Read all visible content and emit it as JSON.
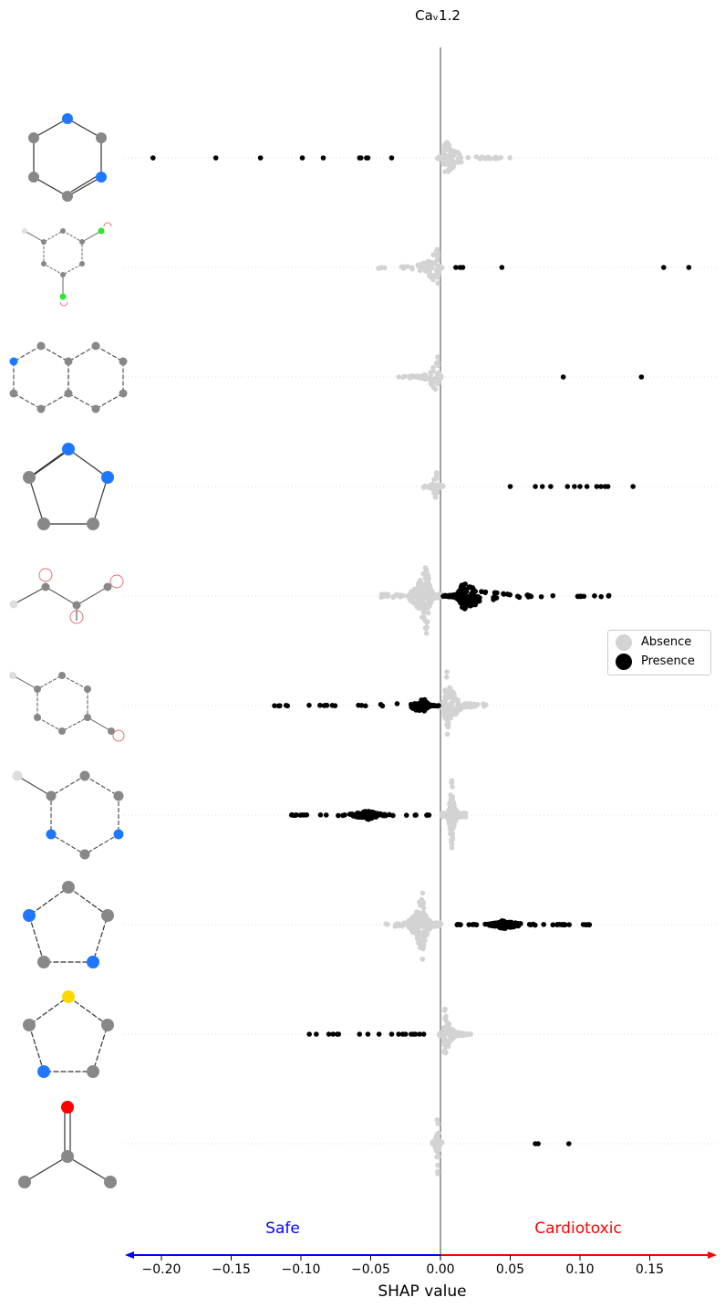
{
  "chart_data": {
    "type": "scatter",
    "title": "Caᵥ1.2",
    "xlabel": "SHAP value",
    "xlim": [
      -0.225,
      0.19
    ],
    "xticks": [
      -0.2,
      -0.15,
      -0.1,
      -0.05,
      0.0,
      0.05,
      0.1,
      0.15
    ],
    "xtick_labels": [
      "−0.20",
      "−0.15",
      "−0.10",
      "−0.05",
      "0.00",
      "0.05",
      "0.10",
      "0.15"
    ],
    "region_labels": {
      "left": "Safe",
      "right": "Cardiotoxic",
      "left_color": "#0000ff",
      "right_color": "#ff0000"
    },
    "legend": {
      "position": "center-right",
      "entries": [
        {
          "label": "Absence",
          "color": "#d3d3d3"
        },
        {
          "label": "Presence",
          "color": "#000000"
        }
      ]
    },
    "grid": false,
    "colors": {
      "absence": "#d3d3d3",
      "presence": "#000000",
      "zero_line": "#808080"
    },
    "rows": [
      {
        "feature": "pyrimidine",
        "absence": {
          "center": 0.003,
          "min": -0.002,
          "max": 0.05,
          "height": 45,
          "n": 110
        },
        "presence": {
          "values": [
            -0.206,
            -0.161,
            -0.129,
            -0.099,
            -0.084,
            -0.058,
            -0.057,
            -0.053,
            -0.052,
            -0.035
          ]
        }
      },
      {
        "feature": "halobenzene-substituted",
        "absence": {
          "center": -0.002,
          "min": -0.045,
          "max": 0.001,
          "height": 45,
          "n": 80
        },
        "presence": {
          "values": [
            0.011,
            0.014,
            0.016,
            0.044,
            0.16,
            0.178
          ]
        }
      },
      {
        "feature": "naphthalene-like",
        "absence": {
          "center": -0.002,
          "min": -0.031,
          "max": 0.001,
          "height": 45,
          "n": 70
        },
        "presence": {
          "values": [
            0.088,
            0.144
          ]
        }
      },
      {
        "feature": "pyrazole",
        "absence": {
          "center": -0.003,
          "min": -0.012,
          "max": 0.002,
          "height": 45,
          "n": 70
        },
        "presence": {
          "values": [
            0.05,
            0.068,
            0.073,
            0.079,
            0.091,
            0.096,
            0.1,
            0.105,
            0.112,
            0.115,
            0.118,
            0.12,
            0.138
          ]
        }
      },
      {
        "feature": "branched-alkyl",
        "absence": {
          "center": -0.01,
          "min": -0.043,
          "max": 0.001,
          "height": 85,
          "n": 220
        },
        "presence": {
          "center": 0.016,
          "min": 0.001,
          "max": 0.121,
          "height": 32,
          "n": 200
        }
      },
      {
        "feature": "substituted-benzene",
        "absence": {
          "center": 0.004,
          "min": -0.001,
          "max": 0.033,
          "height": 85,
          "n": 130
        },
        "presence": {
          "center": -0.011,
          "min": -0.12,
          "max": -0.001,
          "height": 14,
          "n": 90
        }
      },
      {
        "feature": "substituted-pyrimidine",
        "absence": {
          "center": 0.008,
          "min": 0.001,
          "max": 0.018,
          "height": 85,
          "n": 160
        },
        "presence": {
          "center": -0.052,
          "min": -0.108,
          "max": -0.005,
          "height": 10,
          "n": 120
        }
      },
      {
        "feature": "triazole",
        "absence": {
          "center": -0.013,
          "min": -0.039,
          "max": 0.001,
          "height": 85,
          "n": 200
        },
        "presence": {
          "center": 0.045,
          "min": 0.01,
          "max": 0.107,
          "height": 10,
          "n": 160
        }
      },
      {
        "feature": "isothiazole",
        "absence": {
          "center": 0.003,
          "min": -0.001,
          "max": 0.022,
          "height": 62,
          "n": 110
        },
        "presence": {
          "values": [
            -0.094,
            -0.089,
            -0.08,
            -0.077,
            -0.074,
            -0.073,
            -0.058,
            -0.052,
            -0.044,
            -0.035,
            -0.03,
            -0.027,
            -0.025,
            -0.021,
            -0.019,
            -0.018,
            -0.015,
            -0.012
          ]
        }
      },
      {
        "feature": "ketone",
        "absence": {
          "center": -0.002,
          "min": -0.006,
          "max": 0.001,
          "height": 90,
          "n": 70
        },
        "presence": {
          "values": [
            0.068,
            0.07,
            0.092
          ]
        }
      }
    ]
  }
}
